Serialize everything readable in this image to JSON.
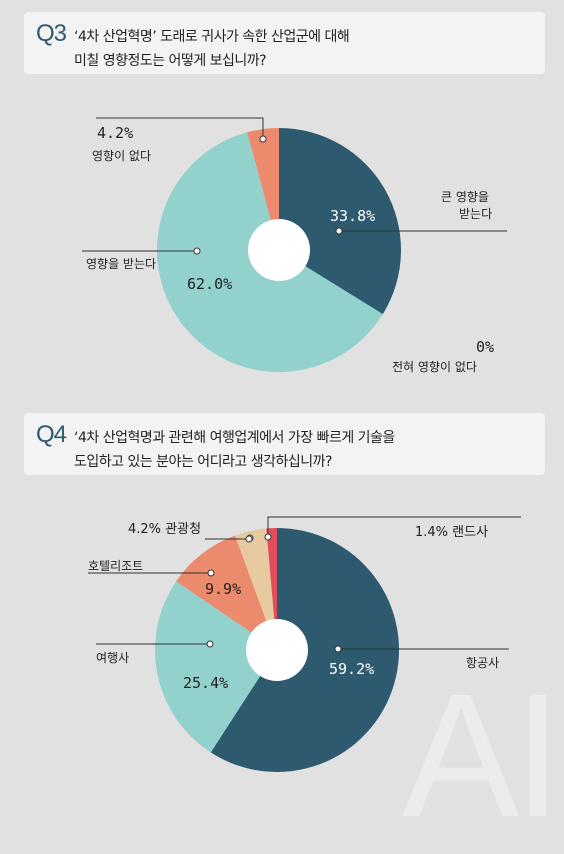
{
  "q3": {
    "number": "Q3",
    "line1": "‘4차 산업혁명’ 도래로 귀사가 속한 산업군에 대해",
    "line2": "미칠 영향정도는 어떻게 보십니까?",
    "labels": {
      "none_pct": "4.2%",
      "none_text": "영향이 없다",
      "big_pct": "33.8%",
      "big_text1": "큰 영향을",
      "big_text2": "받는다",
      "some_pct": "62.0%",
      "some_text": "영향을 받는다",
      "never_pct": "0%",
      "never_text": "전혀 영향이 없다"
    }
  },
  "q4": {
    "number": "Q4",
    "line1": "‘4차 산업혁명과 관련해 여행업계에서 가장 빠르게 기술을",
    "line2": "도입하고 있는 분야는 어디라고 생각하십니까?",
    "labels": {
      "tourism": "4.2% 관광청",
      "landsa": "1.4% 랜드사",
      "hotel_text": "호텔리조트",
      "hotel_pct": "9.9%",
      "travel_text": "여행사",
      "travel_pct": "25.4%",
      "airline_text": "항공사",
      "airline_pct": "59.2%"
    }
  },
  "watermark": "AI",
  "chart_data": [
    {
      "type": "pie",
      "title": "‘4차 산업혁명’ 도래로 귀사가 속한 산업군에 대해 미칠 영향정도는 어떻게 보십니까?",
      "categories": [
        "큰 영향을 받는다",
        "영향을 받는다",
        "영향이 없다",
        "전혀 영향이 없다"
      ],
      "values": [
        33.8,
        62.0,
        4.2,
        0
      ],
      "colors": [
        "#2e5a70",
        "#93d1cc",
        "#ec8a6e",
        "#e1e1e1"
      ]
    },
    {
      "type": "pie",
      "title": "‘4차 산업혁명과 관련해 여행업계에서 가장 빠르게 기술을 도입하고 있는 분야는 어디라고 생각하십니까?",
      "categories": [
        "항공사",
        "여행사",
        "호텔리조트",
        "관광청",
        "랜드사"
      ],
      "values": [
        59.2,
        25.4,
        9.9,
        4.2,
        1.4
      ],
      "colors": [
        "#2e5a70",
        "#93d1cc",
        "#ec8a6e",
        "#e7caa0",
        "#e24c5b"
      ]
    }
  ]
}
